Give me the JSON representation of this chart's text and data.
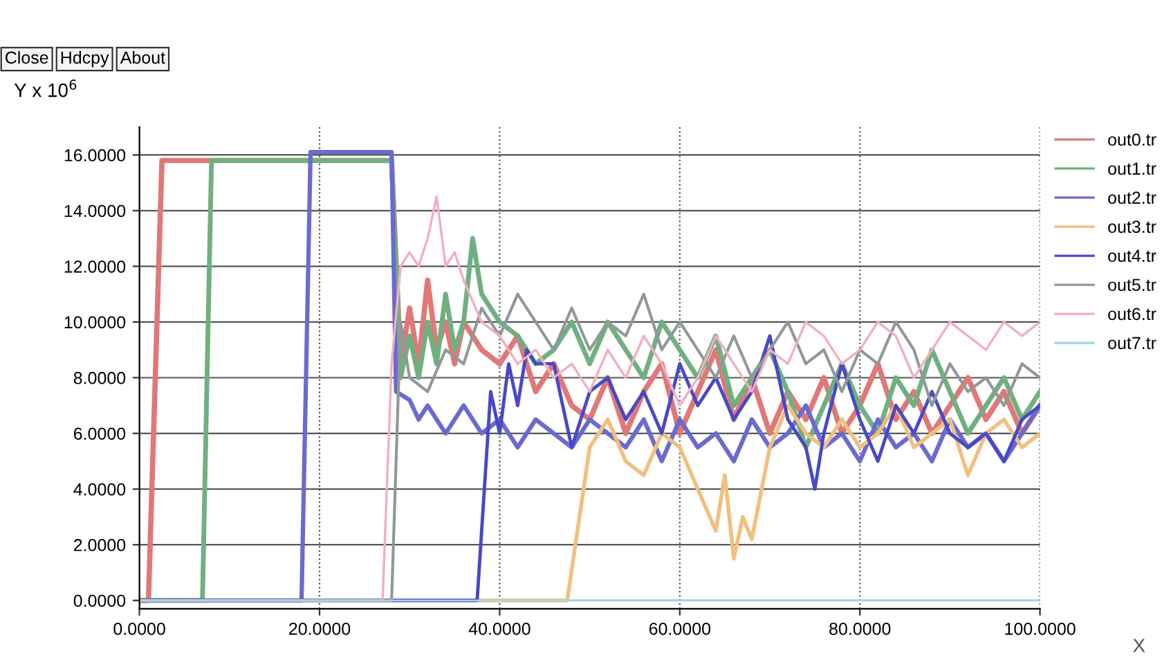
{
  "chart_data": {
    "type": "line",
    "xlabel": "X",
    "ylabel": "Y x 10$^{6}$",
    "annotations": [
      "Close",
      "Hdcpy",
      "About"
    ],
    "xlim": [
      0,
      100
    ],
    "ylim": [
      -0.3,
      17
    ],
    "xticks": [
      {
        "value": 0,
        "label": "0.0000"
      },
      {
        "value": 20,
        "label": "20.0000"
      },
      {
        "value": 40,
        "label": "40.0000"
      },
      {
        "value": 60,
        "label": "60.0000"
      },
      {
        "value": 80,
        "label": "80.0000"
      },
      {
        "value": 100,
        "label": "100.0000"
      }
    ],
    "yticks": [
      {
        "value": 0,
        "label": "0.0000"
      },
      {
        "value": 2,
        "label": "2.0000"
      },
      {
        "value": 4,
        "label": "4.0000"
      },
      {
        "value": 6,
        "label": "6.0000"
      },
      {
        "value": 8,
        "label": "8.0000"
      },
      {
        "value": 10,
        "label": "10.0000"
      },
      {
        "value": 12,
        "label": "12.0000"
      },
      {
        "value": 14,
        "label": "14.0000"
      },
      {
        "value": 16,
        "label": "16.0000"
      }
    ],
    "grid": true,
    "legend": "right",
    "marker": "none",
    "line_style": "solid",
    "series": [
      {
        "name": "out0.tr",
        "color": "#e07878",
        "x": [
          0,
          1,
          2.5,
          28,
          29,
          30,
          31,
          32,
          33,
          34,
          35,
          36,
          38,
          40,
          42,
          44,
          46,
          48,
          50,
          52,
          54,
          56,
          58,
          60,
          62,
          64,
          66,
          68,
          70,
          72,
          74,
          76,
          78,
          80,
          82,
          84,
          86,
          88,
          90,
          92,
          94,
          96,
          98,
          100
        ],
        "values": [
          0,
          0,
          15.8,
          15.8,
          8.5,
          10.5,
          8.5,
          11.5,
          9,
          10,
          8.5,
          10,
          9,
          8.5,
          9.5,
          7.5,
          8.5,
          7,
          6.5,
          8,
          6,
          7.5,
          8.5,
          6,
          7.5,
          9,
          6.5,
          8,
          6,
          7.5,
          6.5,
          8,
          6,
          7,
          8.5,
          6.5,
          7.5,
          6,
          7,
          8,
          6.5,
          7.5,
          6,
          7
        ]
      },
      {
        "name": "out1.tr",
        "color": "#70b080",
        "x": [
          0,
          7,
          8,
          28,
          29,
          30,
          31,
          32,
          33,
          34,
          35,
          36,
          37,
          38,
          40,
          42,
          44,
          46,
          48,
          50,
          52,
          54,
          56,
          58,
          60,
          62,
          64,
          66,
          68,
          70,
          72,
          74,
          76,
          78,
          80,
          82,
          84,
          86,
          88,
          90,
          92,
          94,
          96,
          98,
          100
        ],
        "values": [
          0,
          0,
          15.8,
          15.8,
          8,
          9.5,
          8,
          10,
          8.5,
          11,
          9,
          10,
          13,
          11,
          10,
          9.5,
          8.5,
          9,
          10,
          8.5,
          10,
          9,
          8,
          10,
          9,
          8,
          9.5,
          7,
          8,
          9,
          7.5,
          5.5,
          7,
          8.5,
          7,
          6,
          8,
          7,
          9,
          7.5,
          6,
          7,
          8,
          6.5,
          7.5
        ]
      },
      {
        "name": "out2.tr",
        "color": "#6a6ad0",
        "x": [
          0,
          18,
          19,
          28,
          28.5,
          30,
          31,
          32,
          34,
          36,
          38,
          40,
          42,
          44,
          46,
          48,
          50,
          52,
          54,
          56,
          58,
          60,
          62,
          64,
          66,
          68,
          70,
          72,
          74,
          76,
          78,
          80,
          82,
          84,
          86,
          88,
          90,
          92,
          94,
          96,
          98,
          100
        ],
        "values": [
          0,
          0,
          16.1,
          16.1,
          7.5,
          7.2,
          6.5,
          7,
          6,
          7,
          6,
          6.5,
          5.5,
          6.5,
          6,
          5.5,
          6.5,
          6,
          5.5,
          6.5,
          5,
          6.5,
          5.5,
          6,
          5,
          6.5,
          5.5,
          6,
          7,
          5.5,
          6,
          5,
          6.5,
          5.5,
          6,
          5,
          6.5,
          5.5,
          6,
          5,
          6,
          7
        ]
      },
      {
        "name": "out3.tr",
        "color": "#f0c080",
        "x": [
          0,
          47.5,
          50,
          52,
          54,
          56,
          58,
          60,
          62,
          64,
          65,
          66,
          67,
          68,
          70,
          72,
          74,
          76,
          78,
          80,
          82,
          84,
          86,
          88,
          90,
          92,
          94,
          96,
          98,
          100
        ],
        "values": [
          0,
          0,
          5.5,
          6.5,
          5,
          4.5,
          6,
          5.5,
          4,
          2.5,
          4.5,
          1.5,
          3,
          2.2,
          5.5,
          7,
          6,
          5.5,
          6.5,
          5.5,
          6,
          7,
          5.5,
          6,
          6.5,
          4.5,
          6,
          6.5,
          5.5,
          6
        ]
      },
      {
        "name": "out4.tr",
        "color": "#4848c8",
        "x": [
          0,
          37.5,
          39,
          40,
          41,
          42,
          43,
          44,
          46,
          48,
          50,
          52,
          54,
          56,
          58,
          60,
          62,
          64,
          66,
          68,
          70,
          72,
          74,
          75,
          76,
          78,
          80,
          82,
          84,
          86,
          88,
          90,
          92,
          94,
          96,
          98,
          100
        ],
        "values": [
          0,
          0,
          7.5,
          6,
          8.5,
          7,
          9,
          8.5,
          8.5,
          5.5,
          7.5,
          8,
          6.5,
          7.5,
          6,
          8.5,
          7,
          8,
          6.5,
          7.5,
          9.5,
          6.5,
          5.5,
          4,
          6,
          8.5,
          6.5,
          5,
          7,
          6,
          7.5,
          6,
          5.5,
          6,
          5,
          6.5,
          7
        ]
      },
      {
        "name": "out5.tr",
        "color": "#909898",
        "x": [
          0,
          28,
          29,
          30,
          32,
          34,
          36,
          38,
          40,
          42,
          44,
          46,
          48,
          50,
          52,
          54,
          56,
          58,
          60,
          62,
          64,
          66,
          68,
          70,
          72,
          74,
          76,
          78,
          80,
          82,
          84,
          86,
          88,
          90,
          92,
          94,
          96,
          98,
          100
        ],
        "values": [
          0,
          0,
          10,
          8,
          7.5,
          9,
          8.5,
          10.5,
          9.5,
          11,
          10,
          9,
          10.5,
          9,
          10,
          9.5,
          11,
          9,
          10,
          9,
          8,
          9.5,
          8,
          9,
          10,
          8.5,
          9,
          7.5,
          9,
          8.5,
          10,
          9,
          7,
          8.5,
          7.5,
          8,
          7,
          8.5,
          8
        ]
      },
      {
        "name": "out6.tr",
        "color": "#f0b0c0",
        "x": [
          0,
          27,
          28,
          29,
          30,
          31,
          32,
          33,
          34,
          35,
          36,
          38,
          40,
          42,
          44,
          46,
          48,
          50,
          52,
          54,
          56,
          58,
          60,
          62,
          64,
          66,
          68,
          70,
          72,
          74,
          76,
          78,
          80,
          82,
          84,
          86,
          88,
          90,
          92,
          94,
          96,
          98,
          100
        ],
        "values": [
          0,
          0,
          8.5,
          12,
          12.5,
          12,
          13,
          14.5,
          12,
          12.5,
          11.5,
          10,
          9.5,
          8.5,
          9,
          8,
          8.5,
          7.5,
          9,
          8,
          9.5,
          8.5,
          7,
          8,
          9.5,
          8.5,
          7.5,
          9,
          8.5,
          10,
          9.5,
          8.5,
          9,
          10,
          9.5,
          8,
          9,
          10,
          9.5,
          9,
          10,
          9.5,
          10
        ]
      },
      {
        "name": "out7.tr",
        "color": "#a0d8e8",
        "x": [
          0,
          100
        ],
        "values": [
          0,
          0
        ]
      }
    ]
  }
}
